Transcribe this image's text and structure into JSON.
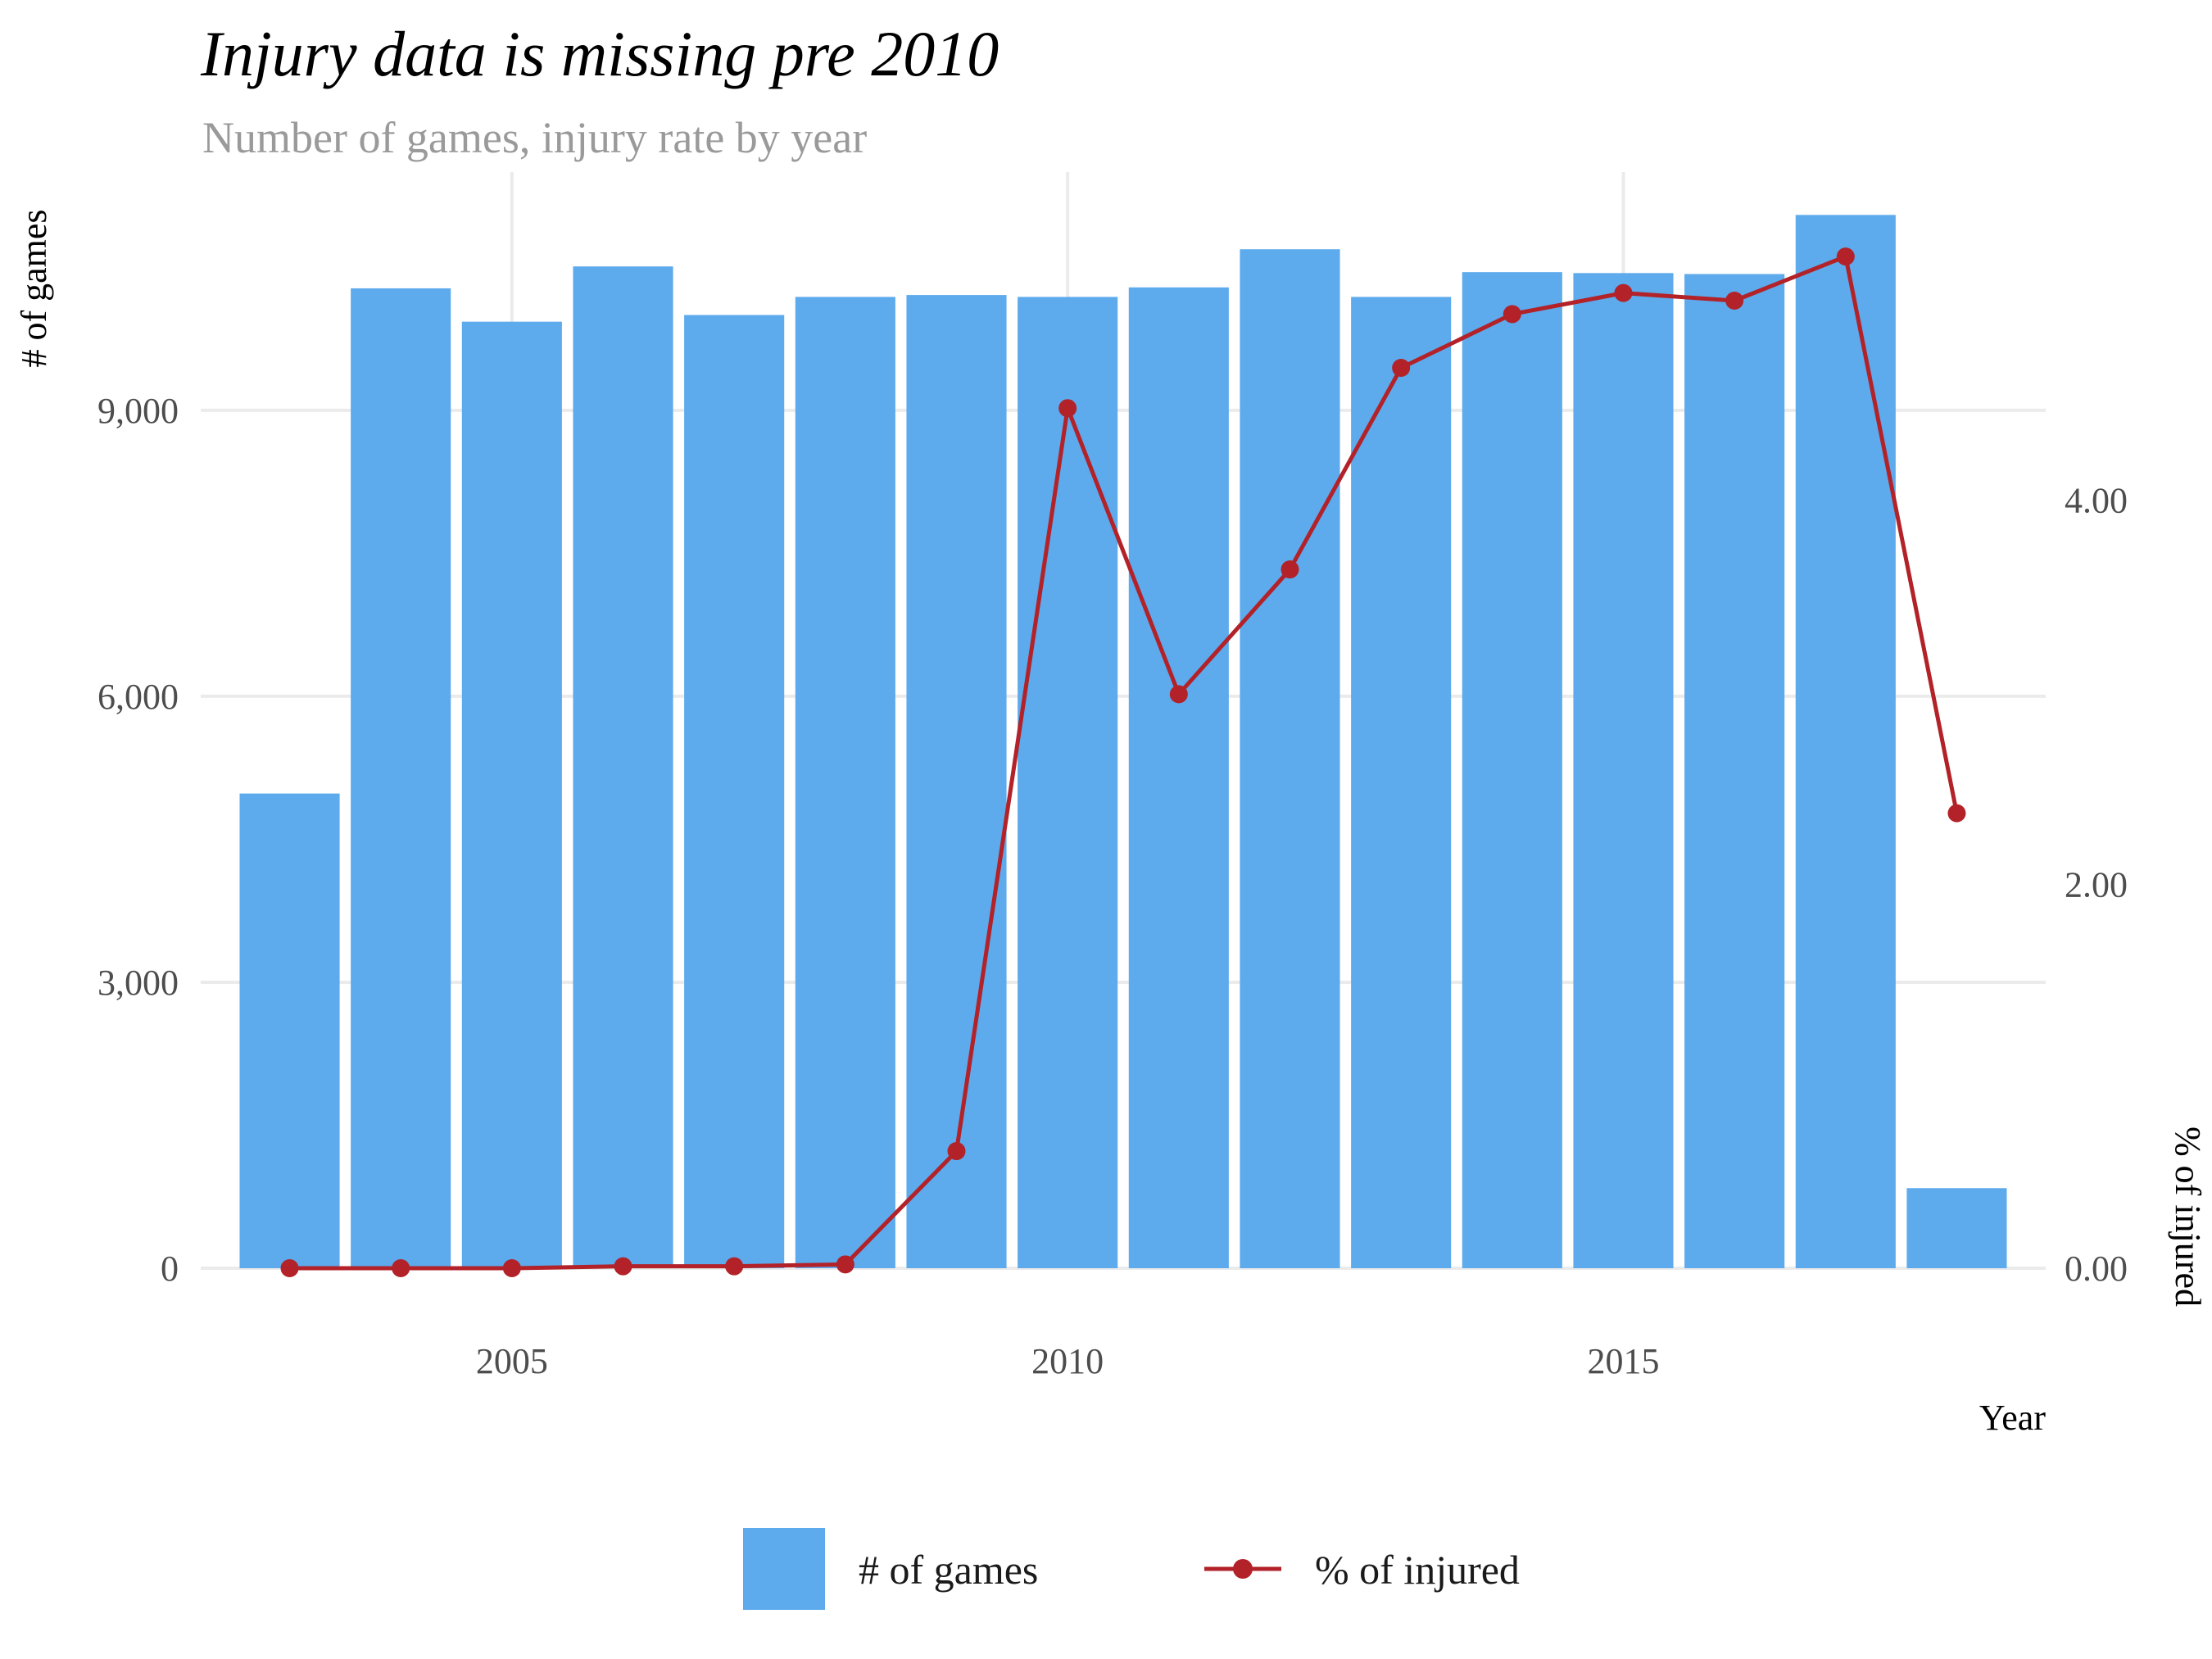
{
  "chart_data": {
    "type": "bar",
    "title": "Injury data is missing pre 2010",
    "subtitle": "Number of games, injury rate by year",
    "xlabel": "Year",
    "ylabel": "# of games",
    "y2label": "% of injured",
    "x": [
      2003,
      2004,
      2005,
      2006,
      2007,
      2008,
      2009,
      2010,
      2011,
      2012,
      2013,
      2014,
      2015,
      2016,
      2017,
      2018
    ],
    "x_ticks": [
      2005,
      2010,
      2015
    ],
    "x_tick_labels": [
      "2005",
      "2010",
      "2015"
    ],
    "ylim": [
      0,
      11500
    ],
    "y_ticks": [
      0,
      3000,
      6000,
      9000
    ],
    "y_tick_labels": [
      "0",
      "3,000",
      "6,000",
      "9,000"
    ],
    "y2lim": [
      0,
      5.27
    ],
    "y2_ticks": [
      0,
      2,
      4
    ],
    "y2_tick_labels": [
      "0.00",
      "2.00",
      "4.00"
    ],
    "grid": true,
    "legend_position": "bottom",
    "series": [
      {
        "name": "# of games",
        "type": "bar",
        "axis": "left",
        "color": "#5DAAEC",
        "values": [
          4980,
          10280,
          9930,
          10510,
          10000,
          10190,
          10210,
          10190,
          10290,
          10690,
          10190,
          10450,
          10440,
          10430,
          11050,
          840
        ]
      },
      {
        "name": "% of injured",
        "type": "line",
        "axis": "right",
        "color": "#B22228",
        "values": [
          0.0,
          0.0,
          0.0,
          0.01,
          0.01,
          0.02,
          0.61,
          4.48,
          2.99,
          3.64,
          4.69,
          4.97,
          5.08,
          5.04,
          5.27,
          2.37
        ]
      }
    ]
  }
}
